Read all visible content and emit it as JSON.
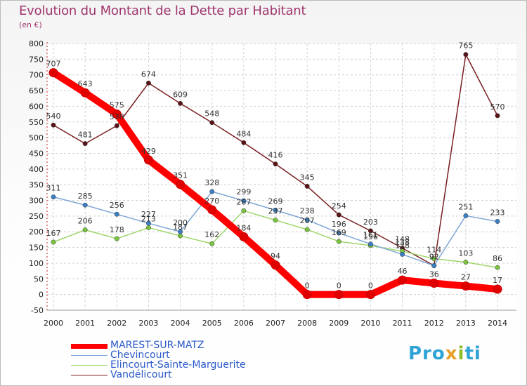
{
  "header": {
    "title": "Evolution du Montant de la Dette par Habitant",
    "unit": "(en €)"
  },
  "logo": {
    "text": "Proxiti"
  },
  "chart_data": {
    "type": "line",
    "title": "Evolution du Montant de la Dette par Habitant",
    "subtitle": "(en €)",
    "xlabel": "",
    "ylabel": "",
    "x": [
      2000,
      2001,
      2002,
      2003,
      2004,
      2005,
      2006,
      2007,
      2008,
      2009,
      2010,
      2011,
      2012,
      2013,
      2014
    ],
    "ylim": [
      -50,
      800
    ],
    "yticks": [
      -50,
      0,
      50,
      100,
      150,
      200,
      250,
      300,
      350,
      400,
      450,
      500,
      550,
      600,
      650,
      700,
      750,
      800
    ],
    "grid": true,
    "legend_position": "bottom-left",
    "series": [
      {
        "name": "Vandélicourt",
        "color": "#7a1e22",
        "marker": "#5a1418",
        "values": [
          540,
          481,
          538,
          674,
          609,
          548,
          484,
          416,
          345,
          254,
          203,
          148,
          92,
          765,
          570
        ]
      },
      {
        "name": "Elincourt-Sainte-Marguerite",
        "color": "#9ed66a",
        "marker": "#7ac53f",
        "values": [
          167,
          206,
          178,
          213,
          187,
          162,
          267,
          237,
          207,
          169,
          156,
          138,
          114,
          103,
          86
        ]
      },
      {
        "name": "Chevincourt",
        "color": "#7fa7d6",
        "marker": "#3b7fc4",
        "values": [
          311,
          285,
          256,
          227,
          200,
          328,
          299,
          269,
          238,
          196,
          161,
          128,
          92,
          251,
          233
        ]
      },
      {
        "name": "MAREST-SUR-MATZ",
        "color": "#ff0000",
        "marker": "#e00000",
        "values": [
          707,
          643,
          575,
          429,
          351,
          270,
          184,
          94,
          0,
          0,
          0,
          46,
          36,
          27,
          17
        ]
      }
    ],
    "data_labels": [
      {
        "series": 0,
        "values": [
          "540",
          "481",
          "538",
          "674",
          "609",
          "548",
          "484",
          "416",
          "345",
          "254",
          "203",
          "148",
          "92",
          "765",
          "570"
        ]
      },
      {
        "series": 1,
        "values": [
          "167",
          "206",
          "178",
          "213",
          "187",
          "162",
          "267",
          "237",
          "207",
          "169",
          "156",
          "138",
          "114",
          "103",
          "86"
        ]
      },
      {
        "series": 2,
        "values": [
          "311",
          "285",
          "256",
          "227",
          "200",
          "328",
          "299",
          "269",
          "238",
          "196",
          "161",
          "128",
          "92",
          "251",
          "233"
        ]
      },
      {
        "series": 3,
        "values": [
          "707",
          "643",
          "575",
          "429",
          "351",
          "270",
          "184",
          "94",
          "0",
          "0",
          "0",
          "46",
          "36",
          "27",
          "17"
        ]
      }
    ]
  },
  "legend": {
    "items": [
      {
        "label": "MAREST-SUR-MATZ",
        "color": "#ff0000"
      },
      {
        "label": "Chevincourt",
        "color": "#7fa7d6"
      },
      {
        "label": "Elincourt-Sainte-Marguerite",
        "color": "#9ed66a"
      },
      {
        "label": "Vandélicourt",
        "color": "#7a1e22"
      }
    ]
  }
}
